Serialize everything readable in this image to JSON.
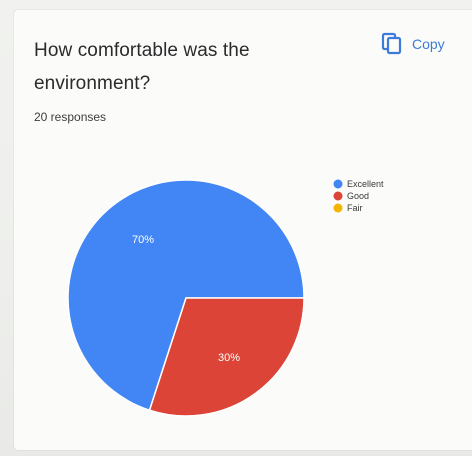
{
  "card": {
    "title_line1": "How comfortable was the",
    "title_line2": "environment?",
    "responses": "20 responses",
    "copy_label": "Copy",
    "copy_icon": "copy-icon"
  },
  "chart_data": {
    "type": "pie",
    "title": "How comfortable was the environment?",
    "categories": [
      "Excellent",
      "Good",
      "Fair"
    ],
    "values": [
      70,
      30,
      0
    ],
    "value_labels": [
      "70%",
      "30%",
      ""
    ],
    "colors": [
      "#4285f4",
      "#db4437",
      "#f4b400"
    ],
    "legend_position": "right"
  }
}
